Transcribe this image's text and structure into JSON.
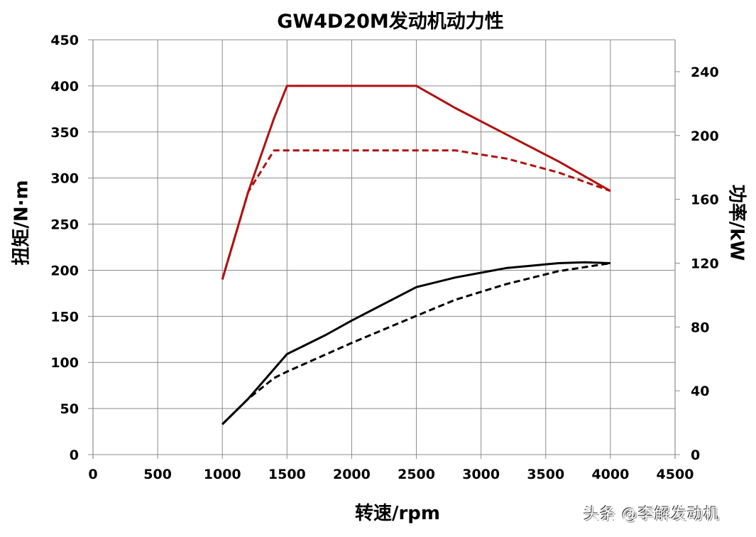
{
  "chart_data": {
    "type": "line",
    "title": "GW4D20M发动机动力性",
    "xlabel": "转速/rpm",
    "ylabel": "扭矩/N·m",
    "y2label": "功率/kW",
    "xlim": [
      0,
      4500
    ],
    "ylim": [
      0,
      450
    ],
    "y2lim": [
      0,
      260
    ],
    "x_ticks": [
      0,
      500,
      1000,
      1500,
      2000,
      2500,
      3000,
      3500,
      4000,
      4500
    ],
    "y_ticks": [
      0,
      50,
      100,
      150,
      200,
      250,
      300,
      350,
      400,
      450
    ],
    "y2_ticks": [
      0,
      40,
      80,
      120,
      160,
      200,
      240
    ],
    "grid": true,
    "legend": "none",
    "series": [
      {
        "name": "扭矩 (实线)",
        "axis": "left",
        "color": "#b01010",
        "dash": false,
        "x": [
          1000,
          1200,
          1400,
          1500,
          2500,
          2800,
          3200,
          3600,
          4000
        ],
        "values": [
          190,
          285,
          365,
          400,
          400,
          376,
          347,
          318,
          286
        ]
      },
      {
        "name": "扭矩 (虚线)",
        "axis": "left",
        "color": "#b01010",
        "dash": true,
        "x": [
          1000,
          1200,
          1400,
          2800,
          3200,
          3600,
          4000
        ],
        "values": [
          190,
          285,
          330,
          330,
          321,
          306,
          286
        ]
      },
      {
        "name": "功率 (实线)",
        "axis": "right",
        "color": "#000000",
        "dash": false,
        "x": [
          1000,
          1200,
          1500,
          1600,
          1800,
          2000,
          2500,
          2800,
          3200,
          3600,
          3800,
          4000
        ],
        "values": [
          19,
          35,
          63,
          67,
          75,
          84,
          105,
          111,
          117,
          120,
          120.5,
          120
        ]
      },
      {
        "name": "功率 (虚线)",
        "axis": "right",
        "color": "#000000",
        "dash": true,
        "x": [
          1000,
          1200,
          1400,
          1500,
          2000,
          2500,
          2800,
          3200,
          3600,
          4000
        ],
        "values": [
          19,
          35,
          48,
          52,
          70,
          87,
          97,
          107,
          115,
          120
        ]
      }
    ]
  },
  "watermark": "头条 @李解发动机"
}
